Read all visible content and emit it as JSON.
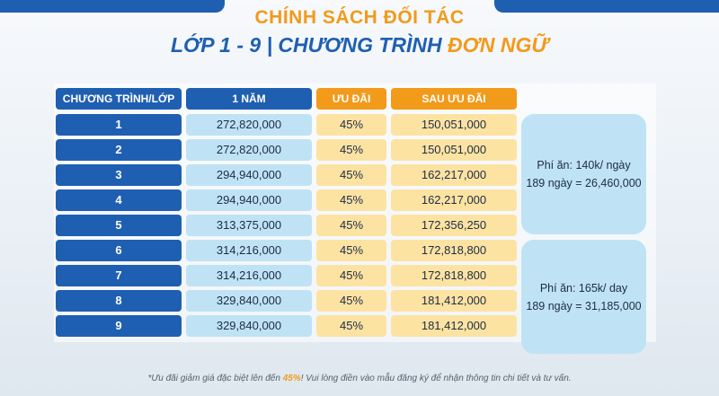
{
  "title": "CHÍNH SÁCH ĐỐI TÁC",
  "subtitle_main": "LỚP 1 - 9 | CHƯƠNG TRÌNH ",
  "subtitle_accent": "ĐƠN NGỮ",
  "table": {
    "headers": {
      "program": "CHƯƠNG TRÌNH/LỚP",
      "year": "1 NĂM",
      "discount": "ƯU ĐÃI",
      "after": "SAU ƯU ĐÃI"
    },
    "rows": [
      {
        "grade": "1",
        "year": "272,820,000",
        "discount": "45%",
        "after": "150,051,000"
      },
      {
        "grade": "2",
        "year": "272,820,000",
        "discount": "45%",
        "after": "150,051,000"
      },
      {
        "grade": "3",
        "year": "294,940,000",
        "discount": "45%",
        "after": "162,217,000"
      },
      {
        "grade": "4",
        "year": "294,940,000",
        "discount": "45%",
        "after": "162,217,000"
      },
      {
        "grade": "5",
        "year": "313,375,000",
        "discount": "45%",
        "after": "172,356,250"
      },
      {
        "grade": "6",
        "year": "314,216,000",
        "discount": "45%",
        "after": "172,818,800"
      },
      {
        "grade": "7",
        "year": "314,216,000",
        "discount": "45%",
        "after": "172,818,800"
      },
      {
        "grade": "8",
        "year": "329,840,000",
        "discount": "45%",
        "after": "181,412,000"
      },
      {
        "grade": "9",
        "year": "329,840,000",
        "discount": "45%",
        "after": "181,412,000"
      }
    ]
  },
  "fees": [
    {
      "line1": "Phí ăn: 140k/ ngày",
      "line2": "189 ngày = 26,460,000"
    },
    {
      "line1": "Phí ăn: 165k/ day",
      "line2": "189 ngày = 31,185,000"
    }
  ],
  "footnote": {
    "before": "*Ưu đãi giảm giá đặc biệt lên đến ",
    "pct": "45%",
    "after": "! Vui lòng điền vào mẫu đăng ký để nhận thông tin chi tiết và tư vấn."
  },
  "colors": {
    "primary_blue": "#1f5fb1",
    "accent_orange": "#f29a1a",
    "light_blue": "#bfe3f5",
    "light_yellow": "#fde3a2"
  }
}
